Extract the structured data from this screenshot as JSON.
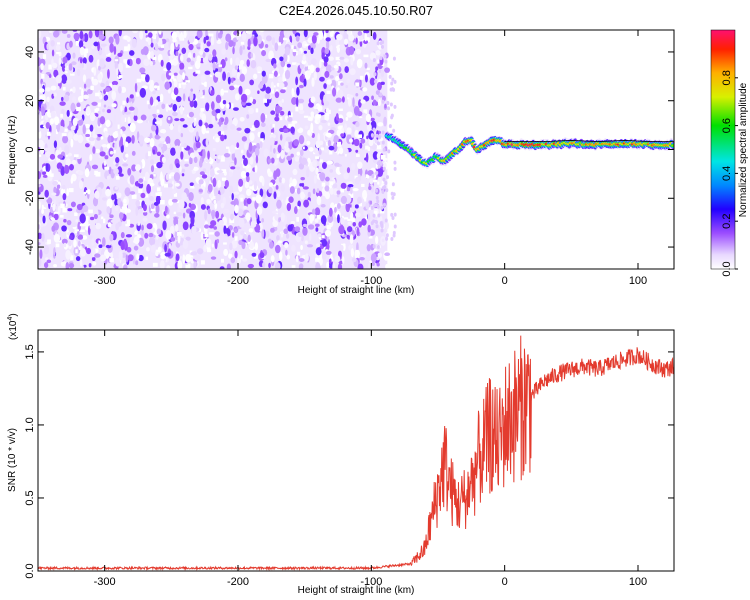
{
  "title": "C2E4.2026.045.10.50.R07",
  "chart_data": [
    {
      "type": "heatmap",
      "xlabel": "Height of straight line (km)",
      "ylabel": "Frequency (Hz)",
      "xlim": [
        -350,
        127
      ],
      "ylim": [
        -49,
        49
      ],
      "x_ticks": [
        -300,
        -200,
        -100,
        0,
        100
      ],
      "y_ticks": [
        -40,
        -20,
        0,
        20,
        40
      ],
      "colorbar": {
        "label": "Normalized spectral amplitude",
        "range": [
          0,
          1
        ],
        "ticks": [
          "0.0",
          "0.2",
          "0.4",
          "0.6",
          "0.8"
        ],
        "tick_values": [
          0,
          0.2,
          0.4,
          0.6,
          0.8
        ],
        "placement": "right"
      },
      "noise_region": {
        "x_range": [
          -350,
          -88
        ],
        "y_range": [
          -49,
          49
        ],
        "amplitude_range": [
          0.0,
          0.2
        ]
      },
      "signal_track": {
        "x": [
          -88,
          -80,
          -72,
          -64,
          -58,
          -52,
          -46,
          -40,
          -34,
          -30,
          -26,
          -20,
          -14,
          -8,
          -2,
          0,
          10,
          30,
          50,
          70,
          90,
          110,
          127
        ],
        "y": [
          6,
          3,
          0,
          -4,
          -6,
          -3,
          -5,
          -2,
          0,
          3,
          4,
          0,
          2,
          4,
          3,
          2,
          2,
          2,
          2.5,
          2,
          2.5,
          2,
          2
        ],
        "amplitude": [
          0.5,
          0.55,
          0.6,
          0.65,
          0.7,
          0.65,
          0.7,
          0.75,
          0.8,
          0.8,
          0.85,
          0.85,
          0.8,
          0.9,
          0.85,
          0.9,
          0.9,
          0.85,
          0.8,
          0.75,
          0.85,
          0.8,
          0.75
        ]
      }
    },
    {
      "type": "line",
      "xlabel": "Height of straight line (km)",
      "ylabel": "SNR (10 * v/v)",
      "y_scale_note": "(x10",
      "y_scale_exp": "4",
      "xlim": [
        -350,
        127
      ],
      "ylim": [
        0,
        1.65
      ],
      "x_ticks": [
        -300,
        -200,
        -100,
        0,
        100
      ],
      "y_ticks": [
        "0.0",
        "0.5",
        "1.0",
        "1.5"
      ],
      "y_tick_values": [
        0,
        0.5,
        1.0,
        1.5
      ],
      "color": "#e33b2e",
      "series": [
        {
          "x": [
            -350,
            -100,
            -70,
            -60,
            -55,
            -50,
            -45,
            -40,
            -35,
            -30,
            -25,
            -20,
            -15,
            -10,
            -5,
            0,
            10,
            20,
            30,
            40,
            50,
            60,
            70,
            80,
            90,
            100,
            110,
            120,
            127
          ],
          "values": [
            0.02,
            0.02,
            0.05,
            0.15,
            0.35,
            0.55,
            0.75,
            0.55,
            0.45,
            0.5,
            0.6,
            0.75,
            0.85,
            0.95,
            0.85,
            1.0,
            1.1,
            1.2,
            1.3,
            1.35,
            1.38,
            1.4,
            1.38,
            1.42,
            1.45,
            1.48,
            1.42,
            1.38,
            1.4
          ]
        }
      ]
    }
  ]
}
